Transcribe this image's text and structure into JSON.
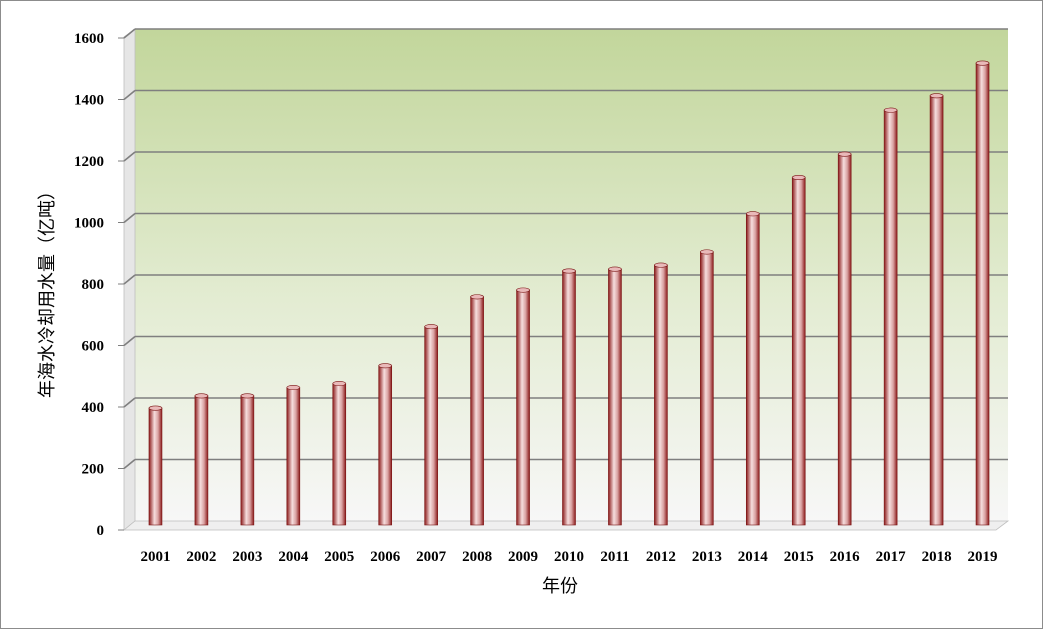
{
  "chart_data": {
    "type": "bar",
    "title": "",
    "xlabel": "年份",
    "ylabel": "年海水冷却用水量（亿吨）",
    "categories": [
      "2001",
      "2002",
      "2003",
      "2004",
      "2005",
      "2006",
      "2007",
      "2008",
      "2009",
      "2010",
      "2011",
      "2012",
      "2013",
      "2014",
      "2015",
      "2016",
      "2017",
      "2018",
      "2019"
    ],
    "series": [
      {
        "values": [
          380,
          420,
          420,
          447,
          460,
          518,
          645,
          742,
          764,
          826,
          832,
          845,
          888,
          1012,
          1130,
          1206,
          1349,
          1396,
          1502
        ]
      }
    ],
    "ylim": [
      0,
      1600
    ],
    "yticks": [
      0,
      200,
      400,
      600,
      800,
      1000,
      1200,
      1400,
      1600
    ],
    "grid": true,
    "legend": "none",
    "colors": {
      "bar_dark": "#8b1a1a",
      "bar_light": "#f6dede",
      "wall_top": "#c2d69b",
      "wall_bottom": "#f7f7f7",
      "gridline": "#7f7f7f"
    }
  }
}
